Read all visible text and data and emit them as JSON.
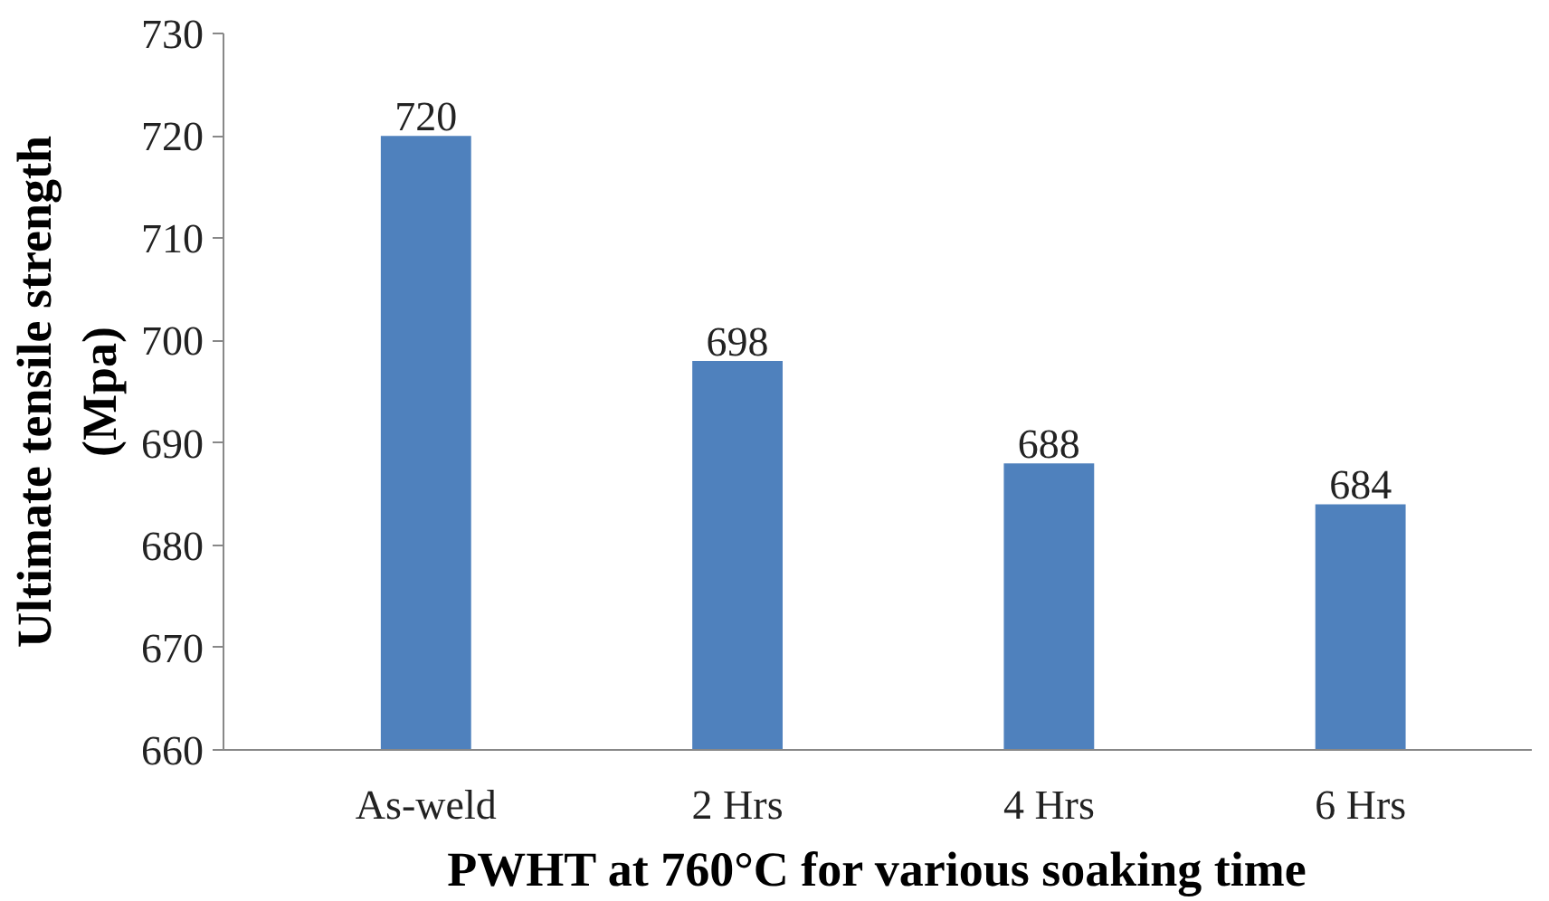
{
  "chart_data": {
    "type": "bar",
    "xlabel": "PWHT at 760°C for various soaking time",
    "ylabel": "Ultimate tensile strength\n(Mpa)",
    "categories": [
      "As-weld",
      "2 Hrs",
      "4 Hrs",
      "6 Hrs"
    ],
    "values": [
      720,
      698,
      688,
      684
    ],
    "color": "#4f81bd",
    "ylim": [
      660,
      730
    ],
    "yticks": [
      660,
      670,
      680,
      690,
      700,
      710,
      720,
      730
    ],
    "data_labels": true
  }
}
